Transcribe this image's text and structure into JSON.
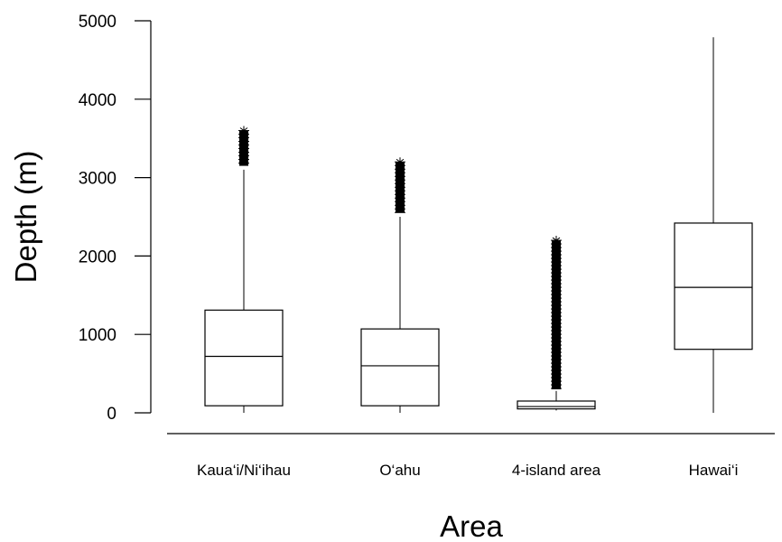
{
  "chart_data": {
    "type": "boxplot",
    "xlabel": "Area",
    "ylabel": "Depth (m)",
    "ylim": [
      0,
      5000
    ],
    "yticks": [
      "0",
      "1000",
      "2000",
      "3000",
      "4000",
      "5000"
    ],
    "grid": false,
    "categories": [
      "Kaua‘i/Ni‘ihau",
      "O‘ahu",
      "4-island area",
      "Hawai‘i"
    ],
    "boxes": [
      {
        "whisker_low": 0,
        "q1": 90,
        "median": 720,
        "q3": 1310,
        "whisker_high": 3100,
        "outliers_min": 3150,
        "outliers_max": 3600
      },
      {
        "whisker_low": 0,
        "q1": 90,
        "median": 600,
        "q3": 1070,
        "whisker_high": 2500,
        "outliers_min": 2550,
        "outliers_max": 3200
      },
      {
        "whisker_low": 30,
        "q1": 50,
        "median": 80,
        "q3": 150,
        "whisker_high": 280,
        "outliers_min": 300,
        "outliers_max": 2200
      },
      {
        "whisker_low": 0,
        "q1": 810,
        "median": 1600,
        "q3": 2420,
        "whisker_high": 4790,
        "outliers_min": null,
        "outliers_max": null
      }
    ]
  }
}
